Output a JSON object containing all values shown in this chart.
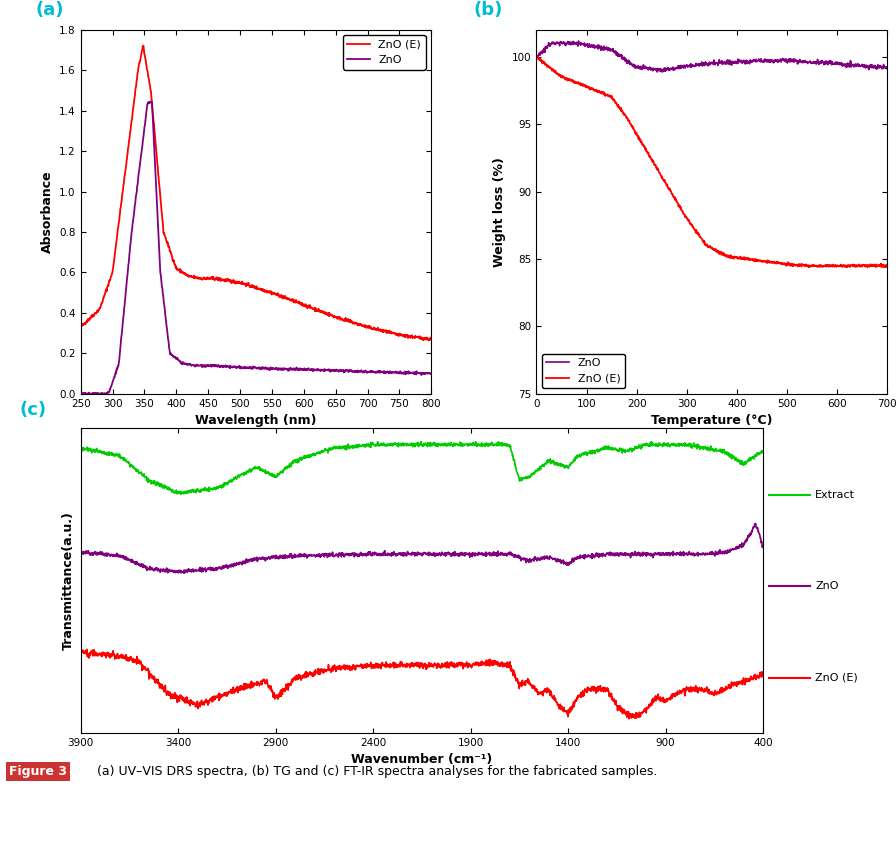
{
  "panel_a": {
    "title": "(a)",
    "xlabel": "Wavelength (nm)",
    "ylabel": "Absorbance",
    "xlim": [
      250,
      800
    ],
    "ylim": [
      0,
      1.8
    ],
    "yticks": [
      0,
      0.2,
      0.4,
      0.6,
      0.8,
      1.0,
      1.2,
      1.4,
      1.6,
      1.8
    ],
    "xticks": [
      250,
      300,
      350,
      400,
      450,
      500,
      550,
      600,
      650,
      700,
      750,
      800
    ],
    "zno_e_color": "#ff0000",
    "zno_color": "#800080",
    "legend_labels": [
      "ZnO (E)",
      "ZnO"
    ]
  },
  "panel_b": {
    "title": "(b)",
    "xlabel": "Temperature (°C)",
    "ylabel": "Weight loss (%)",
    "xlim": [
      0,
      700
    ],
    "ylim": [
      75,
      102
    ],
    "yticks": [
      75,
      80,
      85,
      90,
      95,
      100
    ],
    "xticks": [
      0,
      100,
      200,
      300,
      400,
      500,
      600,
      700
    ],
    "zno_color": "#800080",
    "zno_e_color": "#ff0000",
    "legend_labels": [
      "ZnO",
      "ZnO (E)"
    ]
  },
  "panel_c": {
    "title": "(c)",
    "xlabel": "Wavenumber (cm⁻¹)",
    "ylabel": "Transmittance(a.u.)",
    "xlim": [
      3900,
      400
    ],
    "xticks": [
      3900,
      3400,
      2900,
      2400,
      1900,
      1400,
      900,
      400
    ],
    "extract_color": "#00cc00",
    "zno_color": "#800080",
    "zno_e_color": "#ff0000",
    "legend_labels": [
      "Extract",
      "ZnO",
      "ZnO (E)"
    ]
  },
  "label_color": "#00bcd4",
  "background_color": "#ffffff",
  "caption_bold": "Figure 3",
  "caption_text": "   (a) UV–VIS DRS spectra, (b) TG and (c) FT-IR spectra analyses for the fabricated samples.",
  "caption_bold_color": "#ffffff",
  "caption_box_color": "#cc3333"
}
